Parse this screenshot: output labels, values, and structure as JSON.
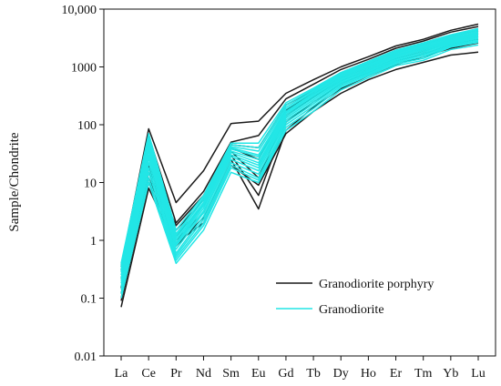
{
  "chart_data": {
    "type": "line",
    "scale_y": "log",
    "ylim": [
      0.01,
      10000
    ],
    "ylabel": "Sample/Chondrite",
    "xlabel": "",
    "title": "",
    "categories": [
      "La",
      "Ce",
      "Pr",
      "Nd",
      "Sm",
      "Eu",
      "Gd",
      "Tb",
      "Dy",
      "Ho",
      "Er",
      "Tm",
      "Yb",
      "Lu"
    ],
    "y_ticks": [
      {
        "value": 0.01,
        "label": "0.01"
      },
      {
        "value": 0.1,
        "label": "0.1"
      },
      {
        "value": 1,
        "label": "1"
      },
      {
        "value": 10,
        "label": "10"
      },
      {
        "value": 100,
        "label": "100"
      },
      {
        "value": 1000,
        "label": "1000"
      },
      {
        "value": 10000,
        "label": "10,000"
      }
    ],
    "legend": {
      "placement": "bottom-right",
      "entries": [
        {
          "label": "Granodiorite porphyry",
          "color": "#1a1a1a"
        },
        {
          "label": "Granodiorite",
          "color": "#22e6e6"
        }
      ]
    },
    "groups": [
      {
        "label": "Granodiorite porphyry",
        "color": "#1a1a1a",
        "series": [
          [
            0.35,
            85,
            4.5,
            16,
            105,
            115,
            350,
            600,
            1000,
            1500,
            2300,
            3000,
            4300,
            5500
          ],
          [
            0.3,
            65,
            2.0,
            7,
            50,
            65,
            280,
            500,
            900,
            1350,
            2100,
            2800,
            4000,
            5000
          ],
          [
            0.22,
            20,
            1.8,
            6,
            45,
            40,
            220,
            400,
            750,
            1150,
            1800,
            2400,
            3400,
            4200
          ],
          [
            0.15,
            18,
            1.5,
            5,
            40,
            25,
            180,
            350,
            650,
            1000,
            1600,
            2100,
            3000,
            3800
          ],
          [
            0.12,
            15,
            1.2,
            4,
            35,
            12,
            140,
            300,
            580,
            900,
            1400,
            1900,
            2700,
            3400
          ],
          [
            0.1,
            12,
            1.0,
            3,
            30,
            6,
            110,
            250,
            500,
            800,
            1250,
            1700,
            2400,
            3000
          ],
          [
            0.07,
            8,
            0.8,
            2.5,
            25,
            3.5,
            80,
            200,
            420,
            700,
            1100,
            1500,
            2100,
            2600
          ],
          [
            0.09,
            10,
            0.9,
            2.0,
            20,
            9,
            70,
            170,
            350,
            600,
            900,
            1200,
            1600,
            1800
          ]
        ]
      },
      {
        "label": "Granodiorite",
        "color": "#22e6e6",
        "series": [
          [
            0.4,
            70,
            1.5,
            6,
            48,
            48,
            240,
            430,
            800,
            1250,
            1950,
            2600,
            3600,
            4600
          ],
          [
            0.38,
            60,
            1.3,
            5.5,
            45,
            40,
            220,
            410,
            770,
            1200,
            1850,
            2500,
            3450,
            4400
          ],
          [
            0.35,
            55,
            1.2,
            5,
            42,
            35,
            200,
            390,
            740,
            1150,
            1780,
            2400,
            3300,
            4200
          ],
          [
            0.32,
            50,
            1.1,
            4.5,
            40,
            30,
            185,
            370,
            710,
            1100,
            1700,
            2300,
            3150,
            4000
          ],
          [
            0.3,
            45,
            1.0,
            4.2,
            38,
            28,
            170,
            350,
            680,
            1050,
            1620,
            2200,
            3000,
            3850
          ],
          [
            0.28,
            40,
            0.9,
            4.0,
            35,
            25,
            160,
            330,
            650,
            1000,
            1560,
            2100,
            2900,
            3700
          ],
          [
            0.25,
            35,
            0.85,
            3.6,
            33,
            22,
            150,
            310,
            620,
            950,
            1500,
            2000,
            2800,
            3550
          ],
          [
            0.22,
            30,
            0.8,
            3.2,
            30,
            20,
            140,
            290,
            590,
            900,
            1430,
            1900,
            2700,
            3400
          ],
          [
            0.2,
            26,
            0.7,
            3.0,
            28,
            18,
            130,
            270,
            560,
            860,
            1360,
            1800,
            2600,
            3250
          ],
          [
            0.18,
            22,
            0.6,
            2.6,
            25,
            16,
            120,
            250,
            530,
            820,
            1300,
            1700,
            2500,
            3100
          ],
          [
            0.16,
            18,
            0.55,
            2.3,
            22,
            14,
            110,
            230,
            500,
            780,
            1240,
            1600,
            2400,
            2950
          ],
          [
            0.14,
            15,
            0.5,
            2.0,
            20,
            12,
            100,
            210,
            470,
            740,
            1180,
            1500,
            2300,
            2800
          ],
          [
            0.12,
            12,
            0.45,
            1.8,
            18,
            11,
            90,
            190,
            440,
            700,
            1120,
            1400,
            2200,
            2650
          ],
          [
            0.1,
            10,
            0.4,
            1.5,
            15,
            10,
            80,
            170,
            400,
            650,
            1050,
            1300,
            2000,
            2400
          ]
        ]
      }
    ]
  }
}
